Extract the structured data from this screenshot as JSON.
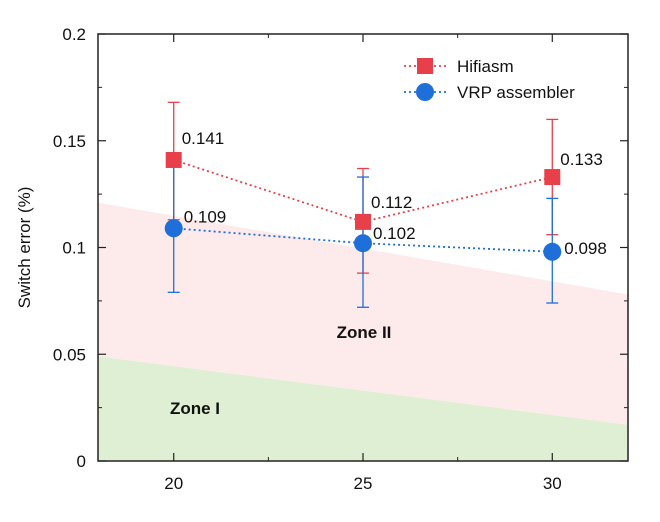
{
  "chart_data": {
    "type": "line",
    "title": "",
    "xlabel": "",
    "ylabel": "Switch error (%)",
    "x": [
      20,
      25,
      30
    ],
    "x_ticks": [
      "20",
      "25",
      "30"
    ],
    "y_ticks": [
      "0",
      "0.05",
      "0.1",
      "0.15",
      "0.2"
    ],
    "xlim": [
      18,
      32
    ],
    "ylim": [
      0,
      0.2
    ],
    "grid": false,
    "legend_position": "top-right",
    "series": [
      {
        "name": "Hifiasm",
        "values": [
          0.141,
          0.112,
          0.133
        ],
        "labels": [
          "0.141",
          "0.112",
          "0.133"
        ],
        "error_low": [
          0.113,
          0.088,
          0.106
        ],
        "error_high": [
          0.168,
          0.137,
          0.16
        ],
        "color": "#e8404a",
        "marker": "square",
        "line_style": "dotted"
      },
      {
        "name": "VRP assembler",
        "values": [
          0.109,
          0.102,
          0.098
        ],
        "labels": [
          "0.109",
          "0.102",
          "0.098"
        ],
        "error_low": [
          0.079,
          0.072,
          0.074
        ],
        "error_high": [
          0.14,
          0.133,
          0.123
        ],
        "color": "#1e6fd9",
        "marker": "circle",
        "line_style": "dotted"
      }
    ],
    "zones": [
      {
        "name": "Zone I",
        "color": "#dfefd3",
        "lower_left": 0,
        "lower_right": 0,
        "upper_left": 0.049,
        "upper_right": 0.017
      },
      {
        "name": "Zone II",
        "color": "#fdeaea",
        "lower_left": 0.049,
        "lower_right": 0.017,
        "upper_left": 0.121,
        "upper_right": 0.078
      }
    ]
  }
}
